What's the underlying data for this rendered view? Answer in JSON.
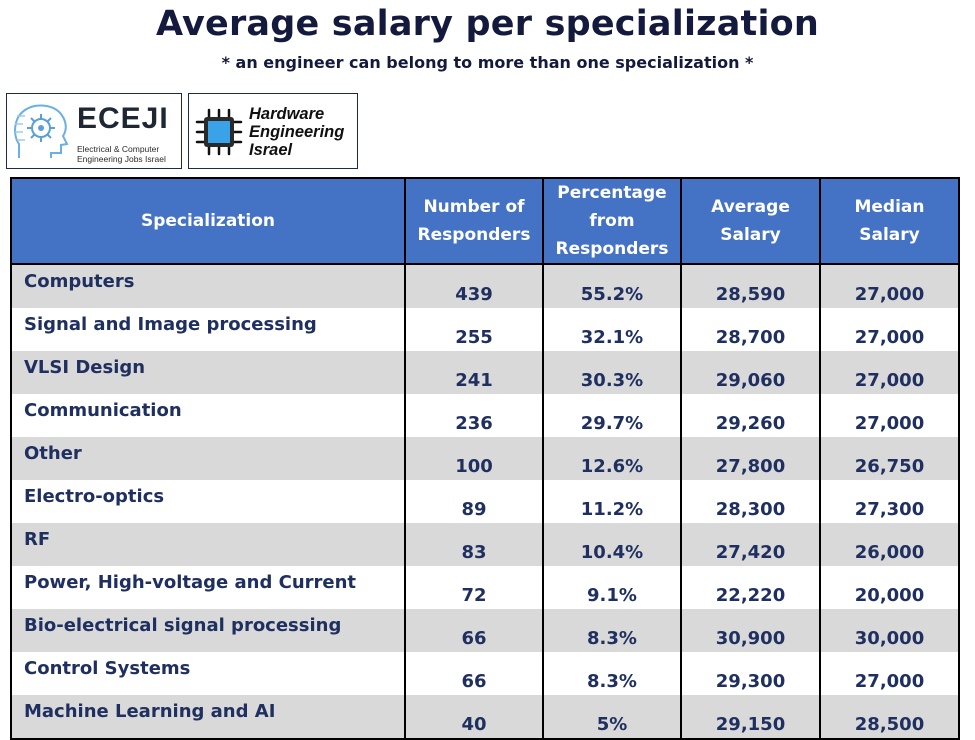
{
  "title": "Average salary per specialization",
  "subtitle": "* an engineer can belong to more than one specialization *",
  "logos": {
    "eceji": {
      "name": "ECEJI",
      "tagline": "Electrical & Computer Engineering Jobs Israel",
      "icon": "brain-circuit-icon"
    },
    "hardware": {
      "line1": "Hardware",
      "line2": "Engineering",
      "line3": "Israel",
      "icon": "microchip-icon"
    }
  },
  "colors": {
    "header_bg": "#4472c4",
    "header_text": "#ffffff",
    "row_shade": "#d9d9d9",
    "body_text": "#1f3060",
    "title_text": "#141a3d"
  },
  "chart_data": {
    "type": "table",
    "title": "Average salary per specialization",
    "subtitle": "* an engineer can belong to more than one specialization *",
    "columns": [
      "Specialization",
      "Number of Responders",
      "Percentage from Responders",
      "Average Salary",
      "Median Salary"
    ],
    "rows": [
      {
        "specialization": "Computers",
        "responders": "439",
        "percentage": "55.2%",
        "average": "28,590",
        "median": "27,000"
      },
      {
        "specialization": "Signal and Image processing",
        "responders": "255",
        "percentage": "32.1%",
        "average": "28,700",
        "median": "27,000"
      },
      {
        "specialization": "VLSI Design",
        "responders": "241",
        "percentage": "30.3%",
        "average": "29,060",
        "median": "27,000"
      },
      {
        "specialization": "Communication",
        "responders": "236",
        "percentage": "29.7%",
        "average": "29,260",
        "median": "27,000"
      },
      {
        "specialization": "Other",
        "responders": "100",
        "percentage": "12.6%",
        "average": "27,800",
        "median": "26,750"
      },
      {
        "specialization": "Electro-optics",
        "responders": "89",
        "percentage": "11.2%",
        "average": "28,300",
        "median": "27,300"
      },
      {
        "specialization": "RF",
        "responders": "83",
        "percentage": "10.4%",
        "average": "27,420",
        "median": "26,000"
      },
      {
        "specialization": "Power, High-voltage and Current",
        "responders": "72",
        "percentage": "9.1%",
        "average": "22,220",
        "median": "20,000"
      },
      {
        "specialization": "Bio-electrical signal processing",
        "responders": "66",
        "percentage": "8.3%",
        "average": "30,900",
        "median": "30,000"
      },
      {
        "specialization": "Control Systems",
        "responders": "66",
        "percentage": "8.3%",
        "average": "29,300",
        "median": "27,000"
      },
      {
        "specialization": "Machine Learning and AI",
        "responders": "40",
        "percentage": "5%",
        "average": "29,150",
        "median": "28,500"
      }
    ]
  }
}
